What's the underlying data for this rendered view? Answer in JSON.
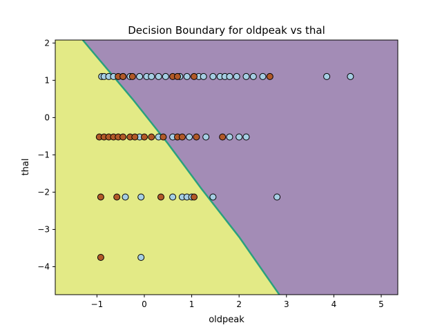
{
  "chart_data": {
    "type": "scatter",
    "title": "Decision Boundary for oldpeak vs thal",
    "xlabel": "oldpeak",
    "ylabel": "thal",
    "xlim": [
      -1.88,
      5.35
    ],
    "ylim": [
      -4.75,
      2.08
    ],
    "xticks": [
      -1,
      0,
      1,
      2,
      3,
      4,
      5
    ],
    "xtick_labels": [
      "−1",
      "0",
      "1",
      "2",
      "3",
      "4",
      "5"
    ],
    "yticks": [
      -4,
      -3,
      -2,
      -1,
      0,
      1,
      2
    ],
    "ytick_labels": [
      "−4",
      "−3",
      "−2",
      "−1",
      "0",
      "1",
      "2"
    ],
    "grid": false,
    "regions": {
      "class_0_color": "#e3ea86",
      "class_1_color": "#a38cb6",
      "boundary_color": "#2aa07e",
      "boundary_line": [
        [
          -1.3,
          2.08
        ],
        [
          -0.25,
          0.5
        ],
        [
          0.5,
          -0.7
        ],
        [
          1.2,
          -1.9
        ],
        [
          2.0,
          -3.2
        ],
        [
          2.85,
          -4.75
        ]
      ]
    },
    "series": [
      {
        "class": 0,
        "color": "#a6cee3",
        "points": [
          [
            -0.9,
            1.1
          ],
          [
            -0.85,
            1.1
          ],
          [
            -0.75,
            1.1
          ],
          [
            -0.65,
            1.1
          ],
          [
            -0.45,
            1.1
          ],
          [
            -0.3,
            1.1
          ],
          [
            -0.1,
            1.1
          ],
          [
            0.05,
            1.1
          ],
          [
            0.15,
            1.1
          ],
          [
            0.3,
            1.1
          ],
          [
            0.45,
            1.1
          ],
          [
            0.75,
            1.1
          ],
          [
            0.9,
            1.1
          ],
          [
            1.15,
            1.1
          ],
          [
            1.25,
            1.1
          ],
          [
            1.45,
            1.1
          ],
          [
            1.6,
            1.1
          ],
          [
            1.7,
            1.1
          ],
          [
            1.8,
            1.1
          ],
          [
            1.95,
            1.1
          ],
          [
            2.15,
            1.1
          ],
          [
            2.3,
            1.1
          ],
          [
            2.5,
            1.1
          ],
          [
            3.85,
            1.1
          ],
          [
            4.35,
            1.1
          ],
          [
            -0.1,
            -0.52
          ],
          [
            0.3,
            -0.52
          ],
          [
            0.6,
            -0.52
          ],
          [
            0.95,
            -0.52
          ],
          [
            1.3,
            -0.52
          ],
          [
            1.8,
            -0.52
          ],
          [
            2.0,
            -0.52
          ],
          [
            2.15,
            -0.52
          ],
          [
            -0.4,
            -2.13
          ],
          [
            -0.07,
            -2.13
          ],
          [
            0.6,
            -2.13
          ],
          [
            0.8,
            -2.13
          ],
          [
            0.9,
            -2.13
          ],
          [
            1.0,
            -2.13
          ],
          [
            1.45,
            -2.13
          ],
          [
            2.8,
            -2.13
          ],
          [
            -0.07,
            -3.75
          ]
        ]
      },
      {
        "class": 1,
        "color": "#b15928",
        "points": [
          [
            -0.55,
            1.1
          ],
          [
            -0.45,
            1.1
          ],
          [
            -0.25,
            1.1
          ],
          [
            0.6,
            1.1
          ],
          [
            0.7,
            1.1
          ],
          [
            1.05,
            1.1
          ],
          [
            2.65,
            1.1
          ],
          [
            -0.95,
            -0.52
          ],
          [
            -0.85,
            -0.52
          ],
          [
            -0.75,
            -0.52
          ],
          [
            -0.65,
            -0.52
          ],
          [
            -0.55,
            -0.52
          ],
          [
            -0.45,
            -0.52
          ],
          [
            -0.3,
            -0.52
          ],
          [
            -0.2,
            -0.52
          ],
          [
            0.0,
            -0.52
          ],
          [
            0.15,
            -0.52
          ],
          [
            0.4,
            -0.52
          ],
          [
            0.7,
            -0.52
          ],
          [
            0.8,
            -0.52
          ],
          [
            1.1,
            -0.52
          ],
          [
            1.65,
            -0.52
          ],
          [
            -0.92,
            -2.13
          ],
          [
            -0.58,
            -2.13
          ],
          [
            0.35,
            -2.13
          ],
          [
            1.05,
            -2.13
          ],
          [
            -0.92,
            -3.75
          ]
        ]
      }
    ]
  }
}
